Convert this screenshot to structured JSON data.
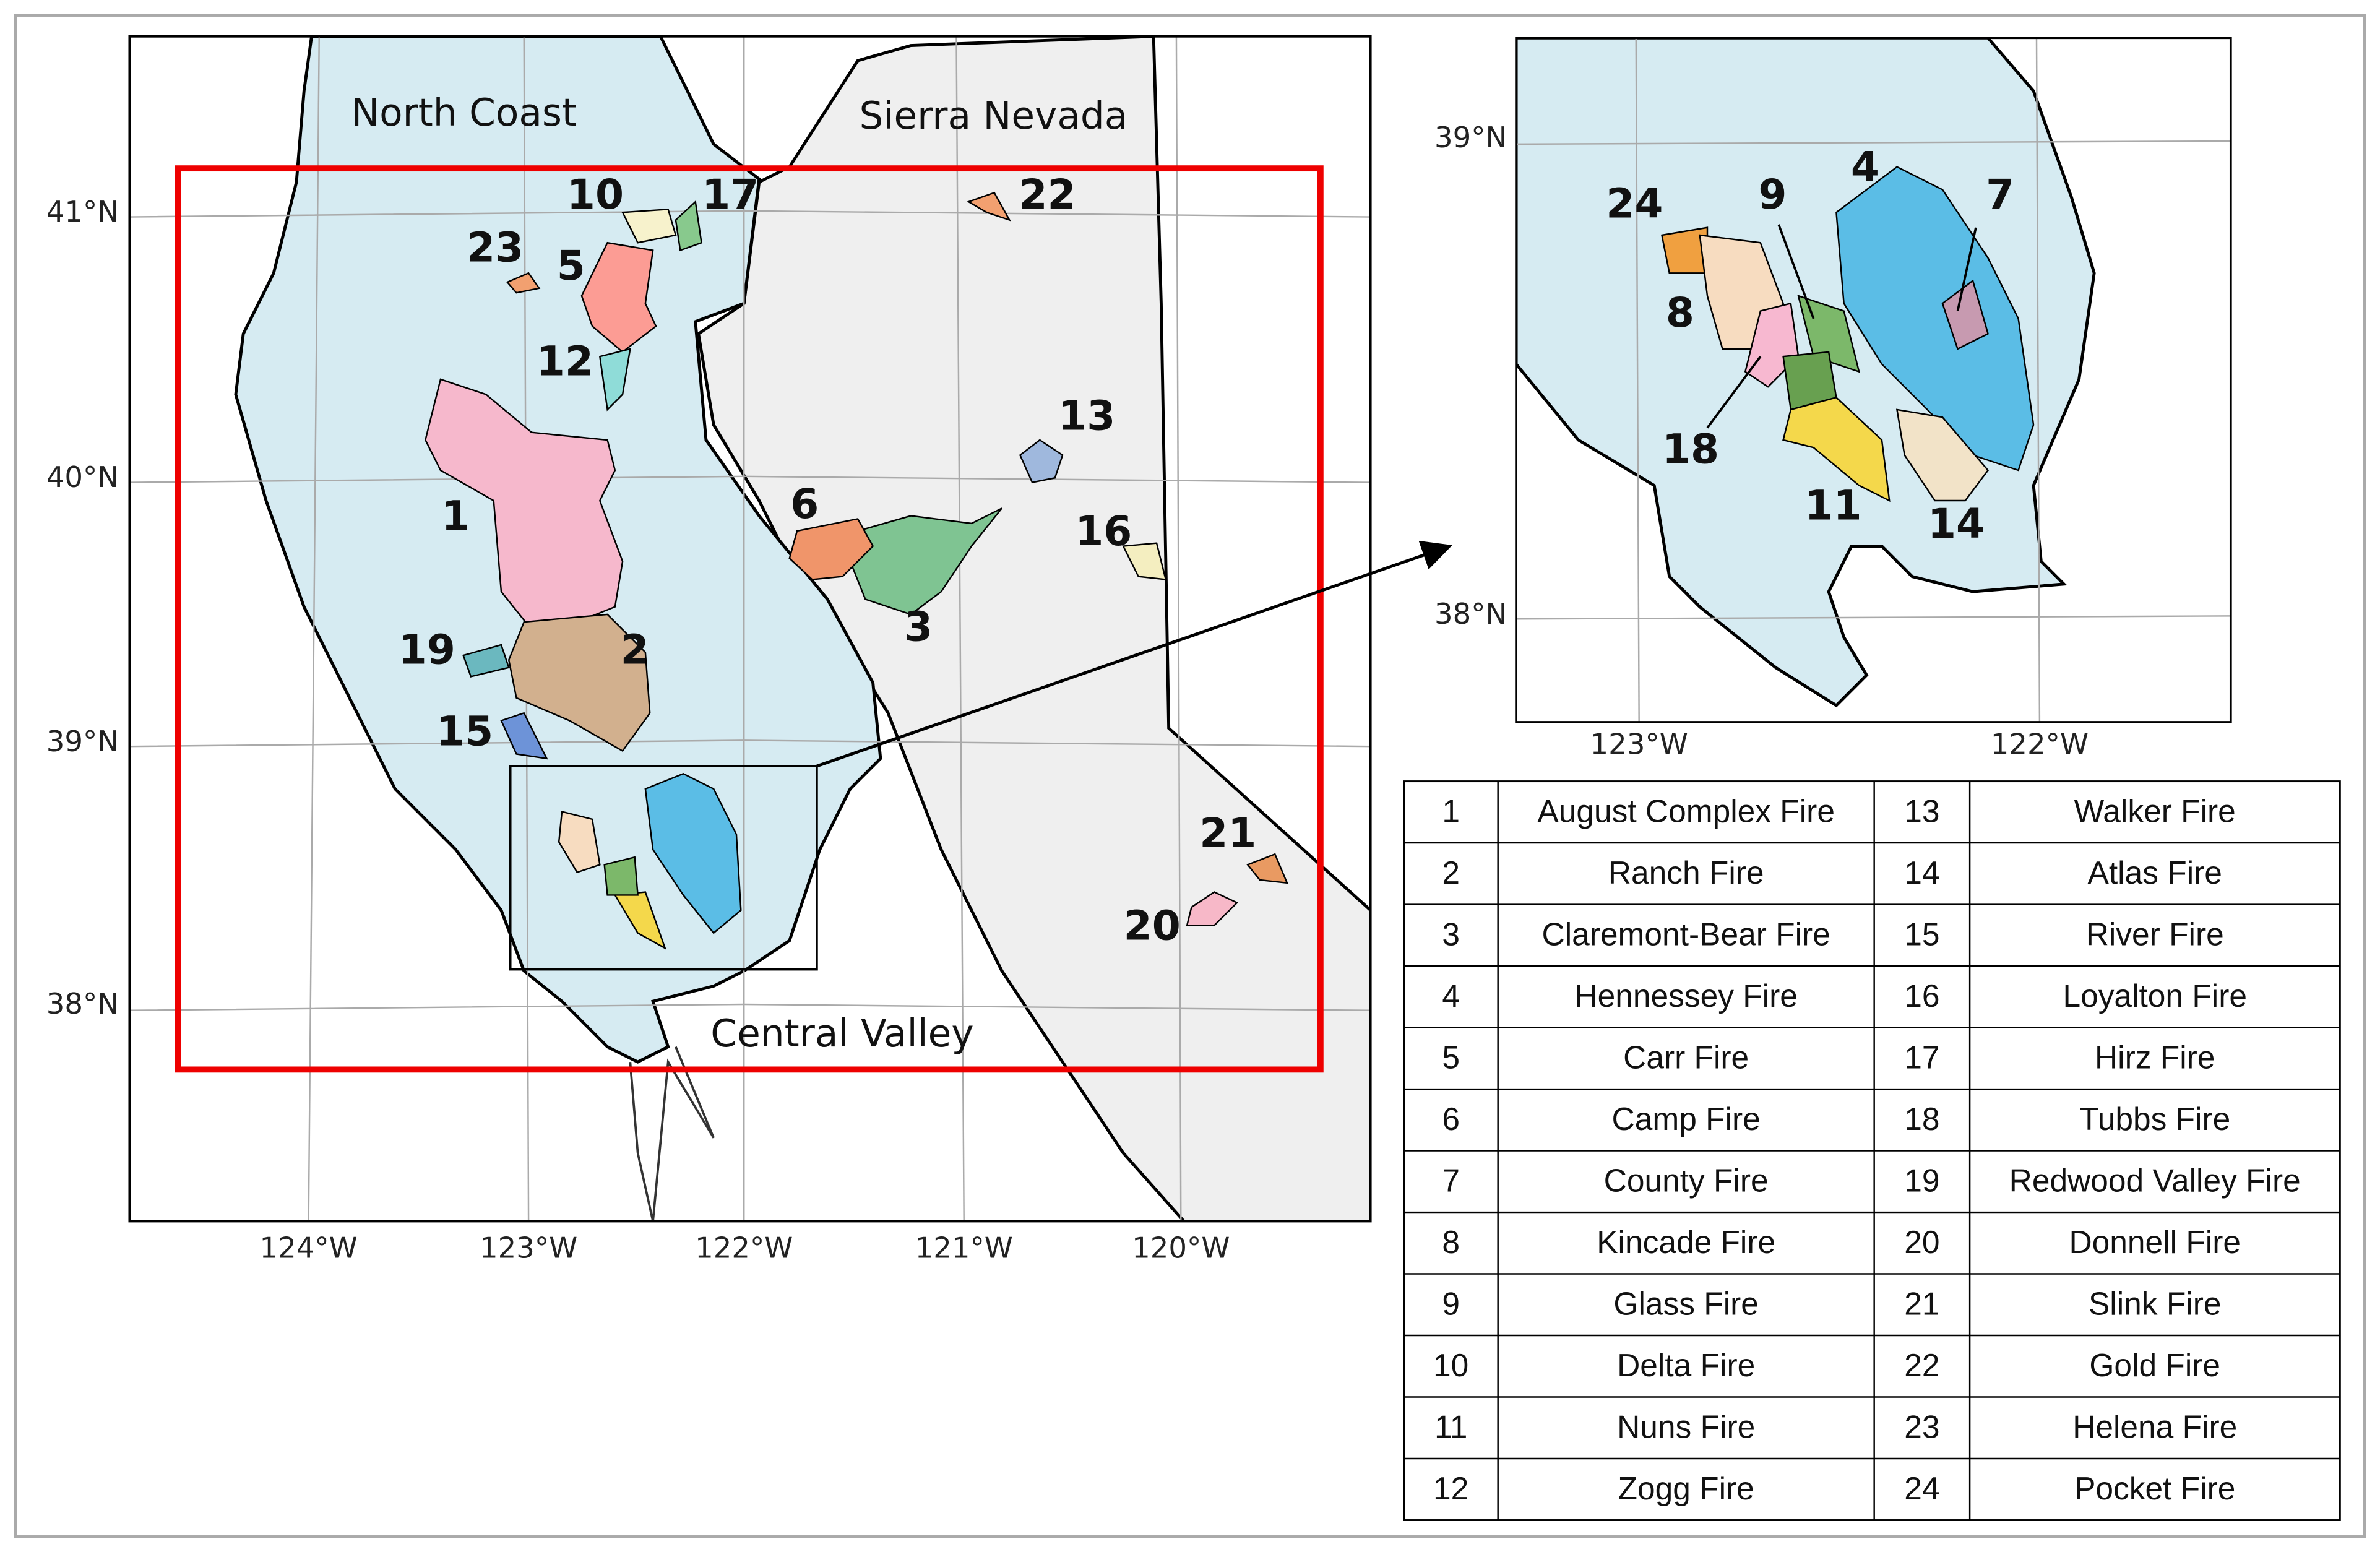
{
  "main_map": {
    "regions": [
      "North Coast",
      "Sierra Nevada",
      "Central Valley"
    ],
    "lat_labels": [
      "41°N",
      "40°N",
      "39°N",
      "38°N"
    ],
    "lon_labels": [
      "124°W",
      "123°W",
      "122°W",
      "121°W",
      "120°W"
    ],
    "fire_labels": [
      "1",
      "2",
      "3",
      "5",
      "6",
      "10",
      "12",
      "13",
      "15",
      "16",
      "17",
      "19",
      "20",
      "21",
      "22",
      "23"
    ]
  },
  "inset_map": {
    "lat_labels": [
      "39°N",
      "38°N"
    ],
    "lon_labels": [
      "123°W",
      "122°W"
    ],
    "fire_labels": [
      "24",
      "9",
      "4",
      "7",
      "8",
      "18",
      "11",
      "14"
    ]
  },
  "table": {
    "rows": [
      [
        "1",
        "August Complex Fire",
        "13",
        "Walker Fire"
      ],
      [
        "2",
        "Ranch Fire",
        "14",
        "Atlas Fire"
      ],
      [
        "3",
        "Claremont-Bear Fire",
        "15",
        "River Fire"
      ],
      [
        "4",
        "Hennessey Fire",
        "16",
        "Loyalton Fire"
      ],
      [
        "5",
        "Carr Fire",
        "17",
        "Hirz Fire"
      ],
      [
        "6",
        "Camp Fire",
        "18",
        "Tubbs Fire"
      ],
      [
        "7",
        "County Fire",
        "19",
        "Redwood Valley Fire"
      ],
      [
        "8",
        "Kincade Fire",
        "20",
        "Donnell Fire"
      ],
      [
        "9",
        "Glass Fire",
        "21",
        "Slink Fire"
      ],
      [
        "10",
        "Delta Fire",
        "22",
        "Gold Fire"
      ],
      [
        "11",
        "Nuns Fire",
        "23",
        "Helena Fire"
      ],
      [
        "12",
        "Zogg Fire",
        "24",
        "Pocket Fire"
      ]
    ]
  }
}
